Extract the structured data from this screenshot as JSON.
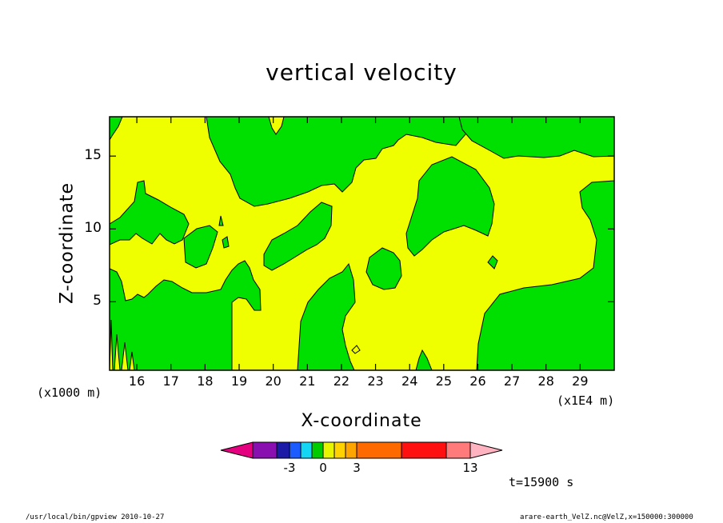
{
  "chart_data": {
    "type": "heatmap",
    "title": "vertical velocity",
    "xlabel": "X-coordinate",
    "ylabel": "Z-coordinate",
    "x_unit_label": "(x1E4 m)",
    "y_unit_label": "(x1000 m)",
    "xlim": [
      15.2,
      30.0
    ],
    "ylim": [
      0.3,
      17.7
    ],
    "x_ticks": [
      "16",
      "17",
      "18",
      "19",
      "20",
      "21",
      "22",
      "23",
      "24",
      "25",
      "26",
      "27",
      "28",
      "29"
    ],
    "y_ticks": [
      "5",
      "10",
      "15"
    ],
    "colorbar": {
      "levels": [
        -5,
        -4,
        -3,
        -2,
        -1,
        0,
        1,
        2,
        3,
        6,
        12,
        13
      ],
      "labels": [
        "-3",
        "0",
        "3",
        "13"
      ],
      "colors": {
        "under": "#e5007f",
        "bins": [
          "#8a0fb0",
          "#1a1aa6",
          "#1a5cff",
          "#13d6f5",
          "#00cc00",
          "#e8f500",
          "#ffd200",
          "#ffa500",
          "#ff6a00",
          "#ff1010",
          "#ff7a7a"
        ],
        "over": "#ffb3c1"
      }
    },
    "field_colors": {
      "positive": "#f0ff00",
      "negative": "#00e000",
      "contour": "#000000"
    },
    "time_label": "t=15900 s"
  },
  "footer": {
    "left": "/usr/local/bin/gpview   2010-10-27",
    "right": "arare-earth_VelZ.nc@VelZ,x=150000:300000"
  }
}
